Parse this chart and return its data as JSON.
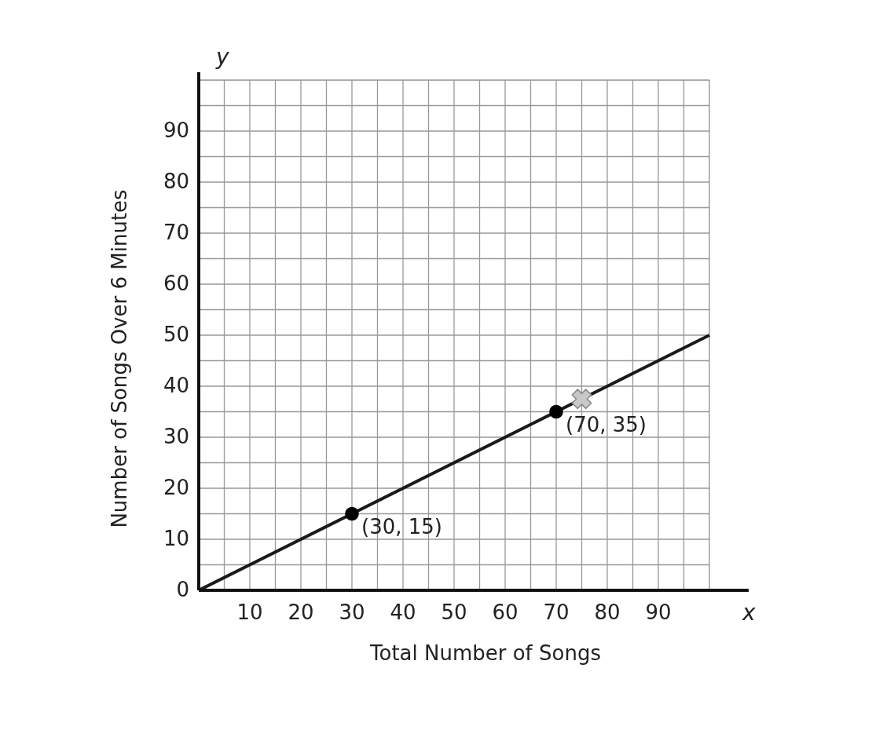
{
  "chart_data": {
    "type": "line",
    "xlabel": "Total Number of Songs",
    "ylabel": "Number of Songs Over 6 Minutes",
    "xlim": [
      0,
      100
    ],
    "ylim": [
      0,
      100
    ],
    "xticks": [
      {
        "value": 5,
        "label": null
      },
      10,
      {
        "value": 15,
        "label": null
      },
      20,
      {
        "value": 25,
        "label": null
      },
      30,
      {
        "value": 35,
        "label": null
      },
      40,
      {
        "value": 45,
        "label": null
      },
      50,
      {
        "value": 55,
        "label": null
      },
      60,
      {
        "value": 65,
        "label": null
      },
      70,
      {
        "value": 75,
        "label": null
      },
      80,
      {
        "value": 85,
        "label": null
      },
      90,
      {
        "value": 95,
        "label": null
      },
      {
        "value": 100,
        "label": null
      }
    ],
    "yticks": [
      0,
      {
        "value": 5,
        "label": null
      },
      10,
      {
        "value": 15,
        "label": null
      },
      20,
      {
        "value": 25,
        "label": null
      },
      30,
      {
        "value": 35,
        "label": null
      },
      40,
      {
        "value": 45,
        "label": null
      },
      50,
      {
        "value": 55,
        "label": null
      },
      60,
      {
        "value": 65,
        "label": null
      },
      70,
      {
        "value": 75,
        "label": null
      },
      80,
      {
        "value": 85,
        "label": null
      },
      90,
      {
        "value": 95,
        "label": null
      },
      {
        "value": 100,
        "label": null
      }
    ],
    "grid": true,
    "series": [
      {
        "type": "line",
        "color": "#1a1a1a",
        "x": [
          0,
          100
        ],
        "values": [
          0,
          50
        ],
        "line_style": "solid"
      },
      {
        "type": "scatter",
        "color": "#000000",
        "x": [
          30,
          70
        ],
        "values": [
          15,
          35
        ],
        "marker": "circle"
      },
      {
        "type": "scatter",
        "color": "#c8c8c8",
        "x": [
          75
        ],
        "values": [
          37.5
        ],
        "marker": "cross"
      }
    ],
    "annotations": [
      {
        "text": "(30, 15)",
        "x": 30,
        "y": 15
      },
      {
        "text": "(70, 35)",
        "x": 70,
        "y": 35
      },
      "y",
      "x"
    ]
  }
}
